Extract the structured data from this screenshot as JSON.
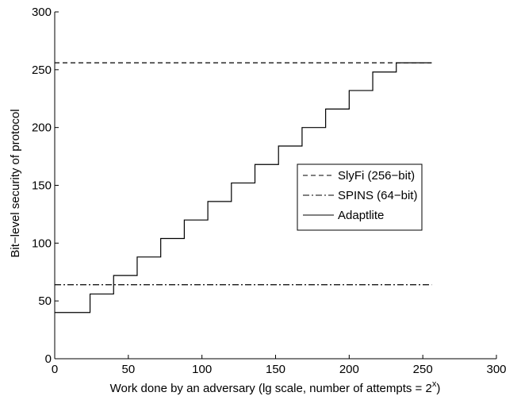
{
  "chart_data": {
    "type": "line",
    "xlabel_main": "Work done by an adversary (lg scale, number of attempts = 2",
    "xlabel_sup": "x",
    "xlabel_close": ")",
    "ylabel": "Bit−level security of protocol",
    "xlim": [
      0,
      300
    ],
    "ylim": [
      0,
      300
    ],
    "xticks": [
      0,
      50,
      100,
      150,
      200,
      250,
      300
    ],
    "yticks": [
      0,
      50,
      100,
      150,
      200,
      250,
      300
    ],
    "grid": false,
    "legend_position": "center-right",
    "series": [
      {
        "name": "SlyFi (256−bit)",
        "style": "dashed",
        "x": [
          0,
          256
        ],
        "y": [
          256,
          256
        ]
      },
      {
        "name": "SPINS (64−bit)",
        "style": "dashdot",
        "x": [
          0,
          256
        ],
        "y": [
          64,
          64
        ]
      },
      {
        "name": "Adaptlite",
        "style": "solid",
        "step": true,
        "x": [
          0,
          24,
          40,
          56,
          72,
          88,
          104,
          120,
          136,
          152,
          168,
          184,
          200,
          216,
          232,
          256
        ],
        "y": [
          40,
          56,
          72,
          88,
          104,
          120,
          136,
          152,
          168,
          184,
          200,
          216,
          232,
          248,
          256,
          256
        ]
      }
    ]
  }
}
